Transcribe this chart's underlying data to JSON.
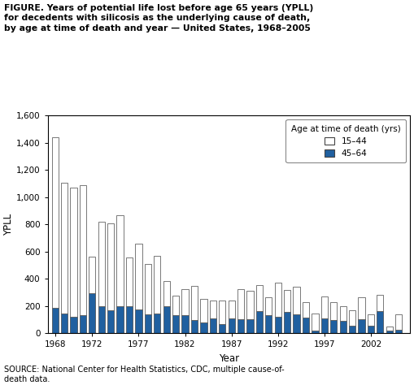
{
  "years": [
    1968,
    1969,
    1970,
    1971,
    1972,
    1973,
    1974,
    1975,
    1976,
    1977,
    1978,
    1979,
    1980,
    1981,
    1982,
    1983,
    1984,
    1985,
    1986,
    1987,
    1988,
    1989,
    1990,
    1991,
    1992,
    1993,
    1994,
    1995,
    1996,
    1997,
    1998,
    1999,
    2000,
    2001,
    2002,
    2003,
    2004,
    2005
  ],
  "age_15_44": [
    1255,
    960,
    950,
    960,
    265,
    625,
    635,
    665,
    355,
    480,
    370,
    420,
    180,
    145,
    195,
    250,
    170,
    135,
    175,
    130,
    220,
    210,
    190,
    130,
    250,
    160,
    200,
    115,
    130,
    165,
    135,
    110,
    115,
    165,
    85,
    120,
    30,
    110
  ],
  "age_45_64": [
    185,
    145,
    120,
    130,
    295,
    195,
    170,
    200,
    200,
    175,
    140,
    145,
    200,
    130,
    130,
    95,
    80,
    105,
    65,
    110,
    100,
    100,
    160,
    130,
    120,
    155,
    140,
    115,
    15,
    105,
    95,
    90,
    55,
    100,
    55,
    160,
    20,
    25
  ],
  "ylim": [
    0,
    1600
  ],
  "yticks": [
    0,
    200,
    400,
    600,
    800,
    1000,
    1200,
    1400,
    1600
  ],
  "xlabel": "Year",
  "ylabel": "YPLL",
  "legend_title": "Age at time of death (yrs)",
  "legend_labels": [
    "15–44",
    "45–64"
  ],
  "legend_facecolor": "white",
  "legend_blue": "#2060a0",
  "bar_edge_color": "#444444",
  "figure_title_line1": "FIGURE. Years of potential life lost before age 65 years (YPLL)",
  "figure_title_line2": "for decedents with silicosis as the underlying cause of death,",
  "figure_title_line3": "by age at time of death and year — United States, 1968–2005",
  "source_text": "SOURCE: National Center for Health Statistics, CDC, multiple cause-of-\ndeath data.",
  "xtick_positions": [
    1968,
    1972,
    1977,
    1982,
    1987,
    1992,
    1997,
    2002
  ],
  "background_color": "#ffffff"
}
